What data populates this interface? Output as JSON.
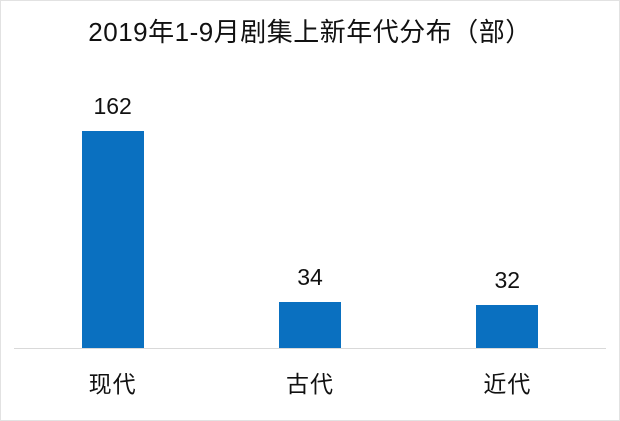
{
  "chart_data": {
    "type": "bar",
    "title": "2019年1-9月剧集上新年代分布（部）",
    "categories": [
      "现代",
      "古代",
      "近代"
    ],
    "values": [
      162,
      34,
      32
    ],
    "value_labels": [
      "162",
      "34",
      "32"
    ],
    "xlabel": "",
    "ylabel": "",
    "ylim": [
      0,
      180
    ],
    "grid": false,
    "legend_position": "none",
    "bar_color": "#0a70c0",
    "axis_line_color": "#d9d9d9",
    "text_color": "#111111",
    "background_color": "#ffffff",
    "data_labels_shown": true
  }
}
